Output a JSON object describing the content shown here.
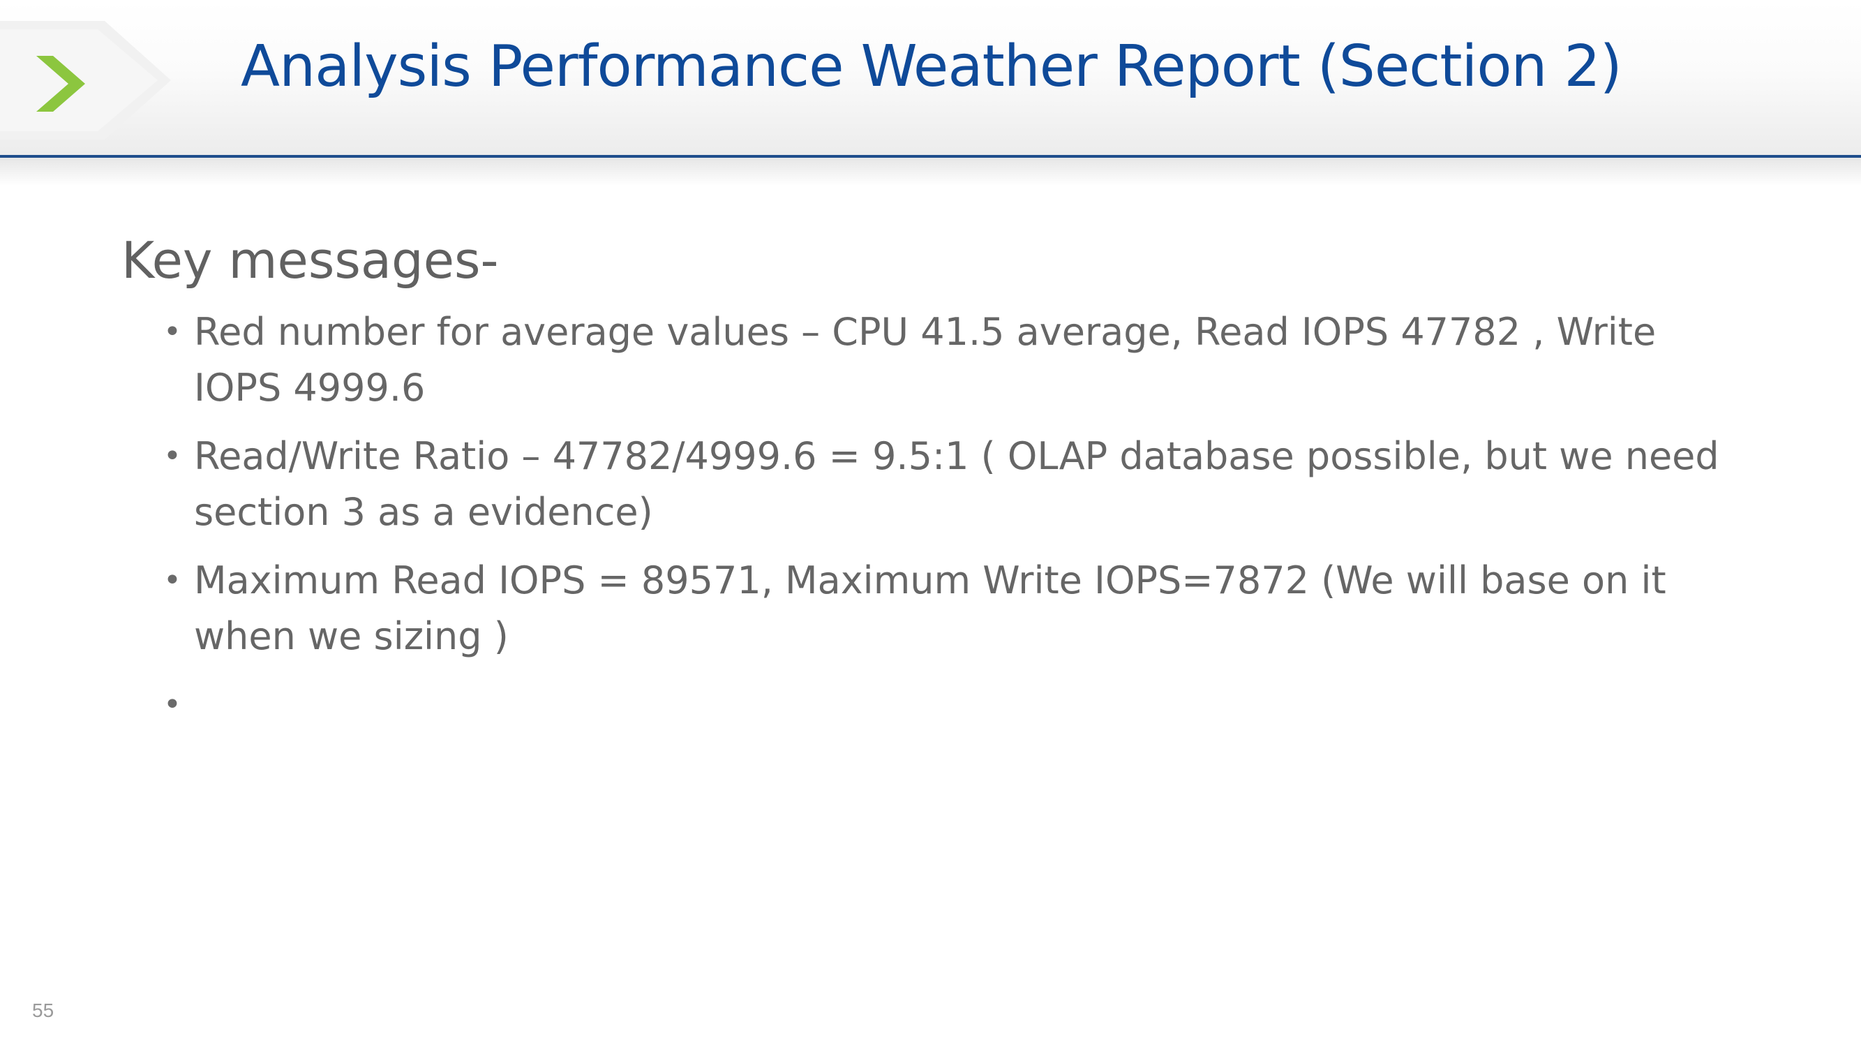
{
  "slide": {
    "title": "Analysis Performance Weather Report (Section 2)",
    "heading": "Key messages-",
    "bullets": [
      "Red number for average values – CPU 41.5 average, Read IOPS 47782 , Write IOPS 4999.6",
      "Read/Write Ratio – 47782/4999.6 = 9.5:1  ( OLAP database possible, but we need section 3 as a evidence)",
      "Maximum Read IOPS =  89571, Maximum Write IOPS=7872 (We will base on it when we sizing )",
      ""
    ],
    "page_number": "55"
  },
  "colors": {
    "title": "#0f4a99",
    "rule": "#1f4e8c",
    "chevron": "#8cc63f",
    "body_text": "#666666"
  },
  "icons": {
    "logo": "chevron-right-icon",
    "bullet": "bullet-dot-icon"
  }
}
